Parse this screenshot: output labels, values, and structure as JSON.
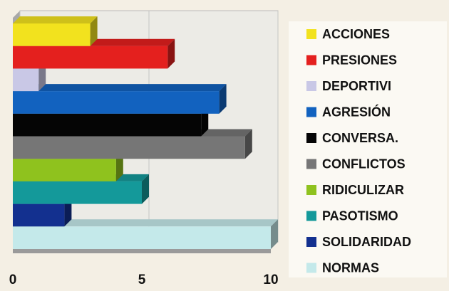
{
  "chart_data": {
    "type": "bar3d",
    "orientation": "horizontal",
    "categories": [
      "ACCIONES",
      "PRESIONES",
      "DEPORTIVI",
      "AGRESIÓN",
      "CONVERSA.",
      "CONFLICTOS",
      "RIDICULIZAR",
      "PASOTISMO",
      "SOLIDARIDAD",
      "NORMAS"
    ],
    "values": [
      3,
      6,
      1,
      8,
      7.3,
      9,
      4,
      5,
      2,
      10
    ],
    "colors": [
      "#f2e21e",
      "#e4201e",
      "#c9c8e6",
      "#1262bf",
      "#050505",
      "#767676",
      "#8fc21e",
      "#14999a",
      "#13308f",
      "#c4e9ea"
    ],
    "xlim": [
      0,
      10
    ],
    "xticks": [
      0,
      5,
      10
    ],
    "grid": true
  }
}
